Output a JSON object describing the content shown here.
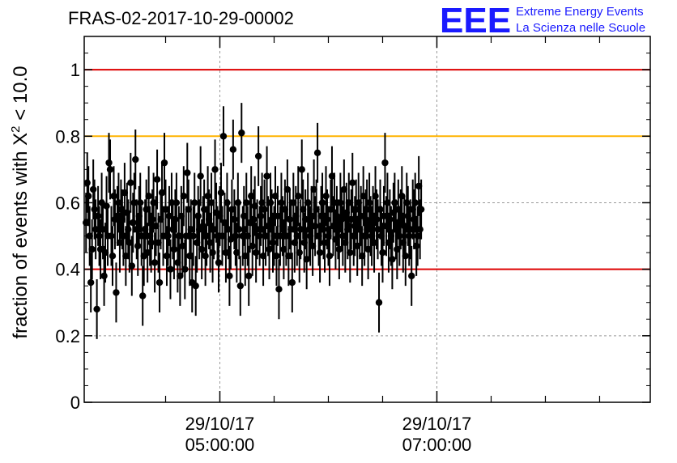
{
  "header": {
    "title": "FRAS-02-2017-10-29-00002"
  },
  "logo": {
    "mark": "EEE",
    "line1": "Extreme Energy Events",
    "line2": "La Scienza nelle Scuole",
    "color": "#1a1aff"
  },
  "colors": {
    "points": "#000000",
    "limit_low_high": "#dd0000",
    "limit_mid": "#ffb300",
    "grid": "#999999"
  },
  "chart_data": {
    "type": "scatter",
    "title": "FRAS-02-2017-10-29-00002",
    "xlabel": "",
    "ylabel": "fraction of events with X",
    "ylabel_sup": "2",
    "ylabel_tail": " < 10.0",
    "ylim": [
      0,
      1.1
    ],
    "yticks": [
      0,
      0.2,
      0.4,
      0.6,
      0.8,
      1
    ],
    "ytick_labels": [
      "0",
      "0.2",
      "0.4",
      "0.6",
      "0.8",
      "1"
    ],
    "xlim": [
      "2017-10-29T03:45:00",
      "2017-10-29T08:58:00"
    ],
    "xticks_labeled": [
      {
        "date": "29/10/17",
        "time": "05:00:00",
        "t": "2017-10-29T05:00:00"
      },
      {
        "date": "29/10/17",
        "time": "07:00:00",
        "t": "2017-10-29T07:00:00"
      }
    ],
    "xticks_minor": [
      "2017-10-29T04:30:00",
      "2017-10-29T05:30:00",
      "2017-10-29T06:00:00",
      "2017-10-29T06:30:00",
      "2017-10-29T07:30:00",
      "2017-10-29T08:00:00",
      "2017-10-29T08:30:00"
    ],
    "grid": true,
    "reference_lines": [
      {
        "y": 1.0,
        "color": "#dd0000"
      },
      {
        "y": 0.8,
        "color": "#ffb300"
      },
      {
        "y": 0.4,
        "color": "#dd0000"
      }
    ],
    "series": [
      {
        "start": "2017-10-29T03:46:00",
        "step_seconds": 40,
        "error": 0.09,
        "values": [
          0.54,
          0.66,
          0.62,
          0.5,
          0.36,
          0.46,
          0.64,
          0.58,
          0.52,
          0.28,
          0.56,
          0.5,
          0.46,
          0.6,
          0.52,
          0.38,
          0.45,
          0.59,
          0.5,
          0.72,
          0.7,
          0.5,
          0.44,
          0.62,
          0.55,
          0.33,
          0.56,
          0.6,
          0.48,
          0.58,
          0.55,
          0.5,
          0.63,
          0.44,
          0.57,
          0.52,
          0.48,
          0.66,
          0.41,
          0.54,
          0.6,
          0.73,
          0.52,
          0.47,
          0.56,
          0.6,
          0.5,
          0.32,
          0.44,
          0.52,
          0.58,
          0.45,
          0.62,
          0.5,
          0.48,
          0.55,
          0.6,
          0.42,
          0.53,
          0.67,
          0.48,
          0.36,
          0.55,
          0.63,
          0.5,
          0.72,
          0.58,
          0.44,
          0.5,
          0.56,
          0.4,
          0.6,
          0.52,
          0.46,
          0.55,
          0.6,
          0.42,
          0.5,
          0.38,
          0.56,
          0.47,
          0.62,
          0.4,
          0.5,
          0.69,
          0.58,
          0.44,
          0.52,
          0.36,
          0.5,
          0.6,
          0.35,
          0.48,
          0.56,
          0.52,
          0.68,
          0.46,
          0.53,
          0.58,
          0.44,
          0.5,
          0.62,
          0.55,
          0.48,
          0.6,
          0.45,
          0.52,
          0.7,
          0.57,
          0.5,
          0.42,
          0.56,
          0.63,
          0.5,
          0.8,
          0.54,
          0.45,
          0.6,
          0.52,
          0.38,
          0.49,
          0.58,
          0.76,
          0.55,
          0.5,
          0.45,
          0.6,
          0.52,
          0.35,
          0.81,
          0.5,
          0.56,
          0.44,
          0.6,
          0.5,
          0.38,
          0.54,
          0.62,
          0.47,
          0.55,
          0.59,
          0.45,
          0.52,
          0.74,
          0.5,
          0.56,
          0.6,
          0.44,
          0.58,
          0.5,
          0.68,
          0.53,
          0.46,
          0.6,
          0.55,
          0.48,
          0.5,
          0.62,
          0.44,
          0.56,
          0.34,
          0.5,
          0.6,
          0.53,
          0.46,
          0.58,
          0.5,
          0.64,
          0.44,
          0.55,
          0.52,
          0.36,
          0.6,
          0.48,
          0.56,
          0.5,
          0.62,
          0.45,
          0.52,
          0.7,
          0.58,
          0.48,
          0.55,
          0.43,
          0.6,
          0.52,
          0.5,
          0.56,
          0.47,
          0.64,
          0.53,
          0.58,
          0.75,
          0.5,
          0.45,
          0.56,
          0.6,
          0.52,
          0.48,
          0.62,
          0.55,
          0.5,
          0.44,
          0.58,
          0.68,
          0.53,
          0.6,
          0.49,
          0.56,
          0.52,
          0.46,
          0.6,
          0.55,
          0.5,
          0.64,
          0.48,
          0.57,
          0.52,
          0.6,
          0.45,
          0.55,
          0.66,
          0.5,
          0.53,
          0.58,
          0.47,
          0.6,
          0.52,
          0.56,
          0.44,
          0.62,
          0.5,
          0.55,
          0.58,
          0.46,
          0.6,
          0.53,
          0.5,
          0.56,
          0.48,
          0.62,
          0.55,
          0.52,
          0.3,
          0.58,
          0.5,
          0.45,
          0.56,
          0.72,
          0.53,
          0.6,
          0.48,
          0.55,
          0.5,
          0.43,
          0.57,
          0.6,
          0.52,
          0.46,
          0.58,
          0.5,
          0.55,
          0.62,
          0.48,
          0.53,
          0.44,
          0.6,
          0.56,
          0.5,
          0.52,
          0.38,
          0.58,
          0.55,
          0.6,
          0.47,
          0.5,
          0.65,
          0.52,
          0.58
        ]
      }
    ]
  }
}
